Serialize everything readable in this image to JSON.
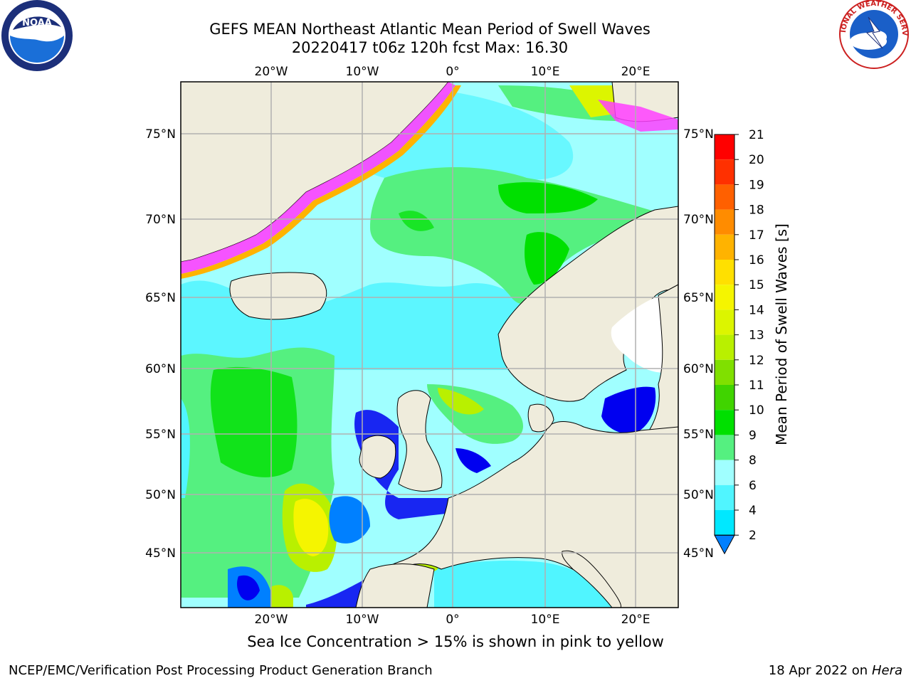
{
  "title": {
    "line1": "GEFS MEAN Northeast Atlantic Mean Period of Swell Waves",
    "line2": "20220417 t06z 120h fcst   Max: 16.30"
  },
  "logos": {
    "left_icon": "noaa-logo",
    "left_text": "NOAA",
    "right_icon": "nws-logo",
    "right_text": "NATIONAL WEATHER SERVICE"
  },
  "map": {
    "lon_ticks_top": [
      "20°W",
      "10°W",
      "0°",
      "10°E",
      "20°E"
    ],
    "lon_ticks_bottom": [
      "20°W",
      "10°W",
      "0°",
      "10°E",
      "20°E"
    ],
    "lat_ticks_left": [
      "75°N",
      "70°N",
      "65°N",
      "60°N",
      "55°N",
      "50°N",
      "45°N"
    ],
    "lat_ticks_right": [
      "75°N",
      "70°N",
      "65°N",
      "60°N",
      "55°N",
      "50°N",
      "45°N"
    ],
    "colors": {
      "land": "#efecdc",
      "grid": "#b0b0b0"
    }
  },
  "colorbar": {
    "title": "Mean Period of Swell Waves [s]",
    "levels": [
      "21",
      "20",
      "19",
      "18",
      "17",
      "16",
      "15",
      "14",
      "13",
      "12",
      "11",
      "10",
      "9",
      "8",
      "6",
      "4",
      "2"
    ],
    "colors": [
      "#ff0000",
      "#ff3000",
      "#ff6000",
      "#ff8c00",
      "#ffb300",
      "#ffe000",
      "#f5f500",
      "#dcf500",
      "#b9f000",
      "#80e000",
      "#40d400",
      "#00e000",
      "#55f080",
      "#a0ffff",
      "#50f5ff",
      "#00e8ff",
      "#0080ff",
      "#0000f0"
    ]
  },
  "footer": {
    "note": "Sea Ice Concentration > 15% is shown in pink to yellow",
    "left": "NCEP/EMC/Verification Post Processing Product Generation Branch",
    "right_prefix": "18 Apr 2022 on ",
    "right_host": "Hera"
  }
}
